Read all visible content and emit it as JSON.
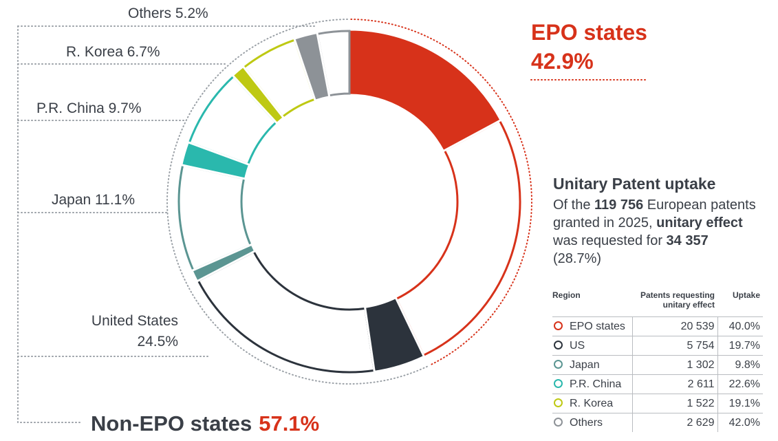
{
  "chart_data": {
    "type": "pie",
    "subtype": "donut",
    "segments": [
      {
        "name": "EPO states",
        "value": 42.9,
        "color": "#d7321a",
        "unitary_share": 40.0
      },
      {
        "name": "United States",
        "value": 24.5,
        "color": "#2c333c",
        "unitary_share": 19.7
      },
      {
        "name": "Japan",
        "value": 11.1,
        "color": "#5b9592",
        "unitary_share": 9.8
      },
      {
        "name": "P.R. China",
        "value": 9.7,
        "color": "#2ab8ad",
        "unitary_share": 22.6
      },
      {
        "name": "R. Korea",
        "value": 6.7,
        "color": "#bec913",
        "unitary_share": 19.1
      },
      {
        "name": "Others",
        "value": 5.2,
        "color": "#8d9297",
        "unitary_share": 42.0
      }
    ],
    "labels": {
      "epo_title": "EPO states",
      "epo_pct": "42.9%",
      "non_epo_title": "Non-EPO states",
      "non_epo_pct": "57.1%",
      "us_line1": "United States",
      "us_line2": "24.5%",
      "japan": "Japan 11.1%",
      "china": "P.R. China 9.7%",
      "korea": "R. Korea 6.7%",
      "others": "Others 5.2%"
    }
  },
  "summary": {
    "title": "Unitary Patent uptake",
    "t1": "Of the ",
    "b1": "119 756",
    "t2": " European patents granted in 2025, ",
    "b2": "unitary effect",
    "t3": " was requested for ",
    "b3": "34 357",
    "t4": " (28.7%)"
  },
  "table": {
    "headers": {
      "region": "Region",
      "patents": "Patents requesting unitary effect",
      "uptake": "Uptake"
    },
    "rows": [
      {
        "region": "EPO states",
        "patents": "20 539",
        "uptake": "40.0%",
        "color": "#d7321a"
      },
      {
        "region": "US",
        "patents": "5 754",
        "uptake": "19.7%",
        "color": "#2c333c"
      },
      {
        "region": "Japan",
        "patents": "1 302",
        "uptake": "9.8%",
        "color": "#5b9592"
      },
      {
        "region": "P.R. China",
        "patents": "2 611",
        "uptake": "22.6%",
        "color": "#2ab8ad"
      },
      {
        "region": "R. Korea",
        "patents": "1 522",
        "uptake": "19.1%",
        "color": "#bec913"
      },
      {
        "region": "Others",
        "patents": "2 629",
        "uptake": "42.0%",
        "color": "#8d9297"
      }
    ]
  }
}
